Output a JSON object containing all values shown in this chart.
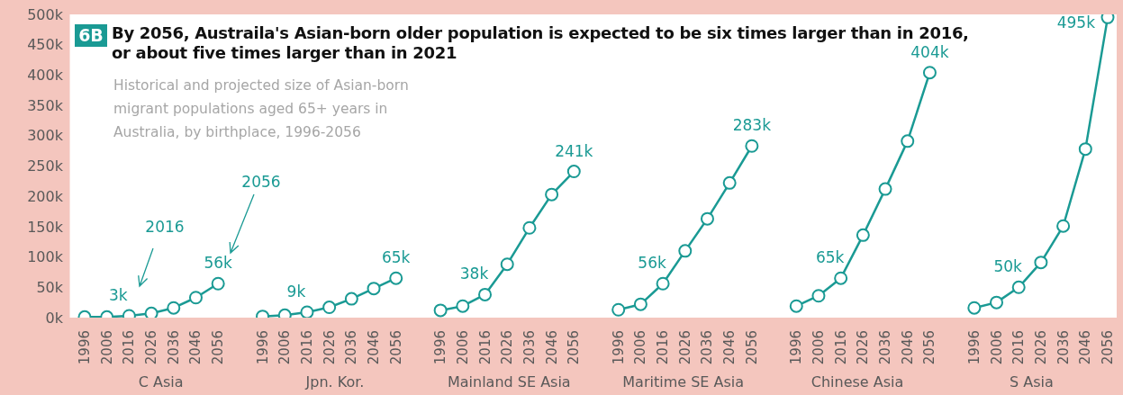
{
  "chart_data": {
    "type": "line",
    "title": "By 2056, Austraila's Asian-born older population is expected to be six times larger than in 2016, or about five times larger than in 2021",
    "subtitle": "Historical and projected size of Asian-born migrant populations aged 65+ years in Australia, by birthplace, 1996-2056",
    "annotations": [
      "6B",
      "C Asia",
      "Jpn. Kor.",
      "Mainland SE Asia",
      "Maritime SE Asia",
      "Chinese Asia",
      "S Asia",
      "2016",
      "2056"
    ],
    "categories": [
      "1996",
      "2006",
      "2016",
      "2026",
      "2036",
      "2046",
      "2056",
      null,
      "1996",
      "2006",
      "2016",
      "2026",
      "2036",
      "2046",
      "2056",
      null,
      "1996",
      "2006",
      "2016",
      "2026",
      "2036",
      "2046",
      "2056",
      null,
      "1996",
      "2006",
      "2016",
      "2026",
      "2036",
      "2046",
      "2056",
      null,
      "1996",
      "2006",
      "2016",
      "2026",
      "2036",
      "2046",
      "2056",
      null,
      "1996",
      "2006",
      "2016",
      "2026",
      "2036",
      "2046",
      "2056"
    ],
    "series": [
      {
        "color": "#1a9a94",
        "values": [
          1,
          1,
          3,
          7,
          16,
          33,
          56,
          null,
          null,
          null,
          null,
          null,
          null,
          null,
          null,
          null,
          null,
          null,
          null,
          null,
          null,
          null,
          null,
          null,
          null,
          null,
          null,
          null,
          null,
          null,
          null,
          null,
          null,
          null,
          null,
          null,
          null,
          null,
          null,
          null,
          null,
          null,
          null,
          null,
          null,
          null,
          null
        ],
        "value_labels": [
          null,
          null,
          "3k",
          null,
          null,
          null,
          "56k",
          null,
          null,
          null,
          null,
          null,
          null,
          null,
          null,
          null,
          null,
          null,
          null,
          null,
          null,
          null,
          null,
          null,
          null,
          null,
          null,
          null,
          null,
          null,
          null,
          null,
          null,
          null,
          null,
          null,
          null,
          null,
          null,
          null,
          null,
          null,
          null,
          null,
          null,
          null,
          null
        ]
      },
      {
        "color": "#1a9a94",
        "values": [
          null,
          null,
          null,
          null,
          null,
          null,
          null,
          null,
          2,
          4,
          9,
          17,
          31,
          48,
          65,
          null,
          null,
          null,
          null,
          null,
          null,
          null,
          null,
          null,
          null,
          null,
          null,
          null,
          null,
          null,
          null,
          null,
          null,
          null,
          null,
          null,
          null,
          null,
          null,
          null,
          null,
          null,
          null,
          null,
          null,
          null,
          null
        ],
        "value_labels": [
          null,
          null,
          null,
          null,
          null,
          null,
          null,
          null,
          null,
          null,
          "9k",
          null,
          null,
          null,
          "65k",
          null,
          null,
          null,
          null,
          null,
          null,
          null,
          null,
          null,
          null,
          null,
          null,
          null,
          null,
          null,
          null,
          null,
          null,
          null,
          null,
          null,
          null,
          null,
          null,
          null,
          null,
          null,
          null,
          null,
          null,
          null,
          null
        ]
      },
      {
        "color": "#1a9a94",
        "values": [
          null,
          null,
          null,
          null,
          null,
          null,
          null,
          null,
          null,
          null,
          null,
          null,
          null,
          null,
          null,
          null,
          12,
          19,
          38,
          88,
          148,
          203,
          241,
          null,
          null,
          null,
          null,
          null,
          null,
          null,
          null,
          null,
          null,
          null,
          null,
          null,
          null,
          null,
          null,
          null,
          null,
          null,
          null,
          null,
          null,
          null,
          null
        ],
        "value_labels": [
          null,
          null,
          null,
          null,
          null,
          null,
          null,
          null,
          null,
          null,
          null,
          null,
          null,
          null,
          null,
          null,
          null,
          null,
          "38k",
          null,
          null,
          null,
          "241k",
          null,
          null,
          null,
          null,
          null,
          null,
          null,
          null,
          null,
          null,
          null,
          null,
          null,
          null,
          null,
          null,
          null,
          null,
          null,
          null,
          null,
          null,
          null,
          null
        ]
      },
      {
        "color": "#1a9a94",
        "values": [
          null,
          null,
          null,
          null,
          null,
          null,
          null,
          null,
          null,
          null,
          null,
          null,
          null,
          null,
          null,
          null,
          null,
          null,
          null,
          null,
          null,
          null,
          null,
          null,
          13,
          22,
          56,
          110,
          163,
          222,
          283,
          null,
          null,
          null,
          null,
          null,
          null,
          null,
          null,
          null,
          null,
          null,
          null,
          null,
          null,
          null,
          null
        ],
        "value_labels": [
          null,
          null,
          null,
          null,
          null,
          null,
          null,
          null,
          null,
          null,
          null,
          null,
          null,
          null,
          null,
          null,
          null,
          null,
          null,
          null,
          null,
          null,
          null,
          null,
          null,
          null,
          "56k",
          null,
          null,
          null,
          "283k",
          null,
          null,
          null,
          null,
          null,
          null,
          null,
          null,
          null,
          null,
          null,
          null,
          null,
          null,
          null,
          null
        ]
      },
      {
        "color": "#1a9a94",
        "values": [
          null,
          null,
          null,
          null,
          null,
          null,
          null,
          null,
          null,
          null,
          null,
          null,
          null,
          null,
          null,
          null,
          null,
          null,
          null,
          null,
          null,
          null,
          null,
          null,
          null,
          null,
          null,
          null,
          null,
          null,
          null,
          null,
          19,
          36,
          65,
          136,
          212,
          291,
          404,
          null,
          null,
          null,
          null,
          null,
          null,
          null,
          null
        ],
        "value_labels": [
          null,
          null,
          null,
          null,
          null,
          null,
          null,
          null,
          null,
          null,
          null,
          null,
          null,
          null,
          null,
          null,
          null,
          null,
          null,
          null,
          null,
          null,
          null,
          null,
          null,
          null,
          null,
          null,
          null,
          null,
          null,
          null,
          null,
          null,
          "65k",
          null,
          null,
          null,
          "404k",
          null,
          null,
          null,
          null,
          null,
          null,
          null,
          null
        ]
      },
      {
        "color": "#1a9a94",
        "values": [
          null,
          null,
          null,
          null,
          null,
          null,
          null,
          null,
          null,
          null,
          null,
          null,
          null,
          null,
          null,
          null,
          null,
          null,
          null,
          null,
          null,
          null,
          null,
          null,
          null,
          null,
          null,
          null,
          null,
          null,
          null,
          null,
          null,
          null,
          null,
          null,
          null,
          null,
          null,
          null,
          16,
          25,
          50,
          91,
          151,
          278,
          495
        ],
        "value_labels": [
          null,
          null,
          null,
          null,
          null,
          null,
          null,
          null,
          null,
          null,
          null,
          null,
          null,
          null,
          null,
          null,
          null,
          null,
          null,
          null,
          null,
          null,
          null,
          null,
          null,
          null,
          null,
          null,
          null,
          null,
          null,
          null,
          null,
          null,
          null,
          null,
          null,
          null,
          null,
          null,
          null,
          null,
          "50k",
          null,
          null,
          null,
          "495k"
        ]
      }
    ],
    "ylim": [
      0,
      500
    ],
    "yticks": [
      {
        "value": 0,
        "label": "0k"
      },
      {
        "value": 50,
        "label": "50k"
      },
      {
        "value": 100,
        "label": "100k"
      },
      {
        "value": 150,
        "label": "150k"
      },
      {
        "value": 200,
        "label": "200k"
      },
      {
        "value": 250,
        "label": "250k"
      },
      {
        "value": 300,
        "label": "300k"
      },
      {
        "value": 350,
        "label": "350k"
      },
      {
        "value": 400,
        "label": "400k"
      },
      {
        "value": 450,
        "label": "450k"
      },
      {
        "value": 500,
        "label": "500k"
      }
    ],
    "marker": "circle"
  }
}
